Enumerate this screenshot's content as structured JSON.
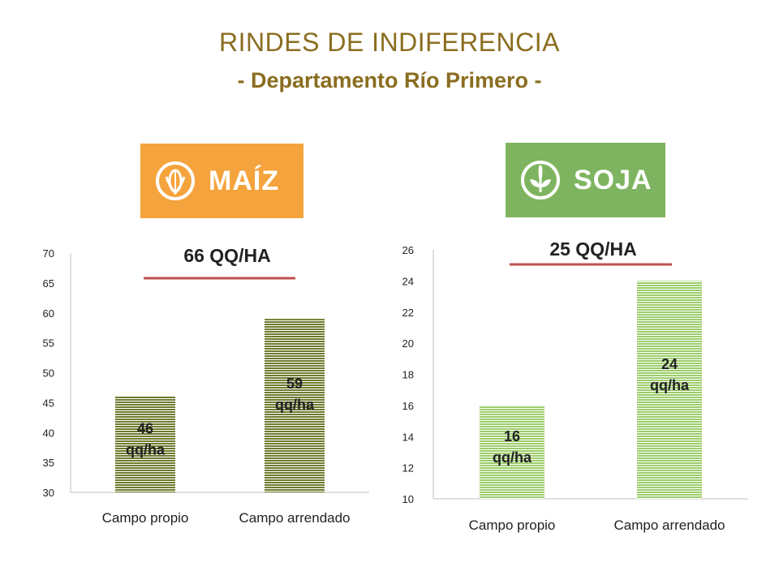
{
  "title": "RINDES DE INDIFERENCIA",
  "subtitle": "- Departamento Río Primero -",
  "logos": {
    "maiz": {
      "label": "MAÍZ",
      "color": "#f5a33c"
    },
    "soja": {
      "label": "SOJA",
      "color": "#7eb45f"
    }
  },
  "colors": {
    "bar_maiz": "#6f7a2e",
    "bar_soja": "#9ccd6b",
    "threshold_line": "#c0504d"
  },
  "chart_data": [
    {
      "type": "bar",
      "crop": "maiz",
      "categories": [
        "Campo propio",
        "Campo arrendado"
      ],
      "values": [
        46,
        59
      ],
      "data_labels": [
        [
          "46",
          "qq/ha"
        ],
        [
          "59",
          "qq/ha"
        ]
      ],
      "threshold_label": "66 QQ/HA",
      "yticks": [
        30,
        35,
        40,
        45,
        50,
        55,
        60,
        65,
        70
      ],
      "ylim": [
        30,
        70
      ]
    },
    {
      "type": "bar",
      "crop": "soja",
      "categories": [
        "Campo propio",
        "Campo arrendado"
      ],
      "values": [
        16,
        24
      ],
      "data_labels": [
        [
          "16",
          "qq/ha"
        ],
        [
          "24",
          "qq/ha"
        ]
      ],
      "threshold_label": "25 QQ/HA",
      "yticks": [
        10,
        12,
        14,
        16,
        18,
        20,
        22,
        24,
        26
      ],
      "ylim": [
        10,
        26
      ]
    }
  ]
}
